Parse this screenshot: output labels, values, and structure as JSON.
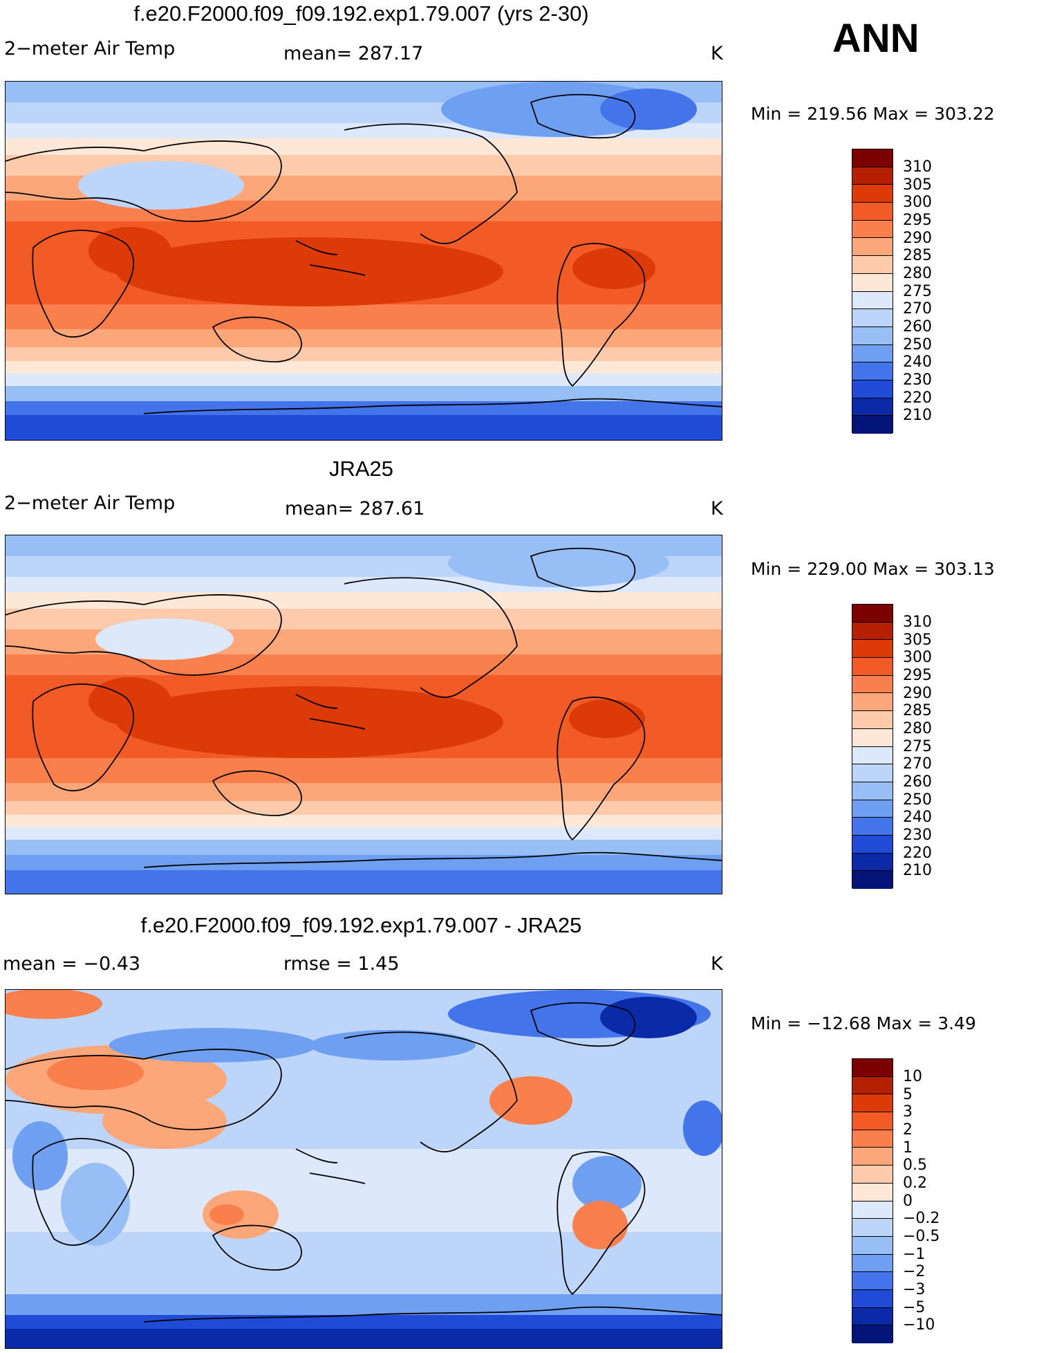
{
  "season": "ANN",
  "panels": [
    {
      "title": "f.e20.F2000.f09_f09.192.exp1.79.007 (yrs 2-30)",
      "left_label": "2−meter Air Temp",
      "center_label": "mean=  287.17",
      "units": "K",
      "minmax": "Min  =  219.56  Max  =  303.22",
      "colorbar": {
        "labels": [
          "310",
          "305",
          "300",
          "295",
          "290",
          "285",
          "280",
          "275",
          "270",
          "260",
          "250",
          "240",
          "230",
          "220",
          "210"
        ],
        "colors": [
          "#7d0000",
          "#b42000",
          "#dc3a06",
          "#f25b25",
          "#f9804c",
          "#fba77a",
          "#fdcbab",
          "#fde8d8",
          "#dde9fa",
          "#bcd5f8",
          "#98bff5",
          "#6e9ff0",
          "#4474ea",
          "#1f4bd6",
          "#0a2aa8",
          "#04157a"
        ]
      }
    },
    {
      "title": "JRA25",
      "left_label": "2−meter Air Temp",
      "center_label": "mean=  287.61",
      "units": "K",
      "minmax": "Min  =  229.00  Max  =  303.13",
      "colorbar": {
        "labels": [
          "310",
          "305",
          "300",
          "295",
          "290",
          "285",
          "280",
          "275",
          "270",
          "260",
          "250",
          "240",
          "230",
          "220",
          "210"
        ],
        "colors": [
          "#7d0000",
          "#b42000",
          "#dc3a06",
          "#f25b25",
          "#f9804c",
          "#fba77a",
          "#fdcbab",
          "#fde8d8",
          "#dde9fa",
          "#bcd5f8",
          "#98bff5",
          "#6e9ff0",
          "#4474ea",
          "#1f4bd6",
          "#0a2aa8",
          "#04157a"
        ]
      }
    },
    {
      "title": "f.e20.F2000.f09_f09.192.exp1.79.007 - JRA25",
      "left_label": "mean  =    −0.43",
      "center_label": "rmse  =     1.45",
      "units": "K",
      "minmax": "Min  =  −12.68  Max  =     3.49",
      "colorbar": {
        "labels": [
          "10",
          "5",
          "3",
          "2",
          "1",
          "0.5",
          "0.2",
          "0",
          "−0.2",
          "−0.5",
          "−1",
          "−2",
          "−3",
          "−5",
          "−10"
        ],
        "colors": [
          "#7d0000",
          "#b42000",
          "#dc3a06",
          "#f25b25",
          "#f9804c",
          "#fba77a",
          "#fdcbab",
          "#fde8d8",
          "#dde9fa",
          "#bcd5f8",
          "#98bff5",
          "#6e9ff0",
          "#4474ea",
          "#1f4bd6",
          "#0a2aa8",
          "#04157a"
        ]
      }
    }
  ]
}
